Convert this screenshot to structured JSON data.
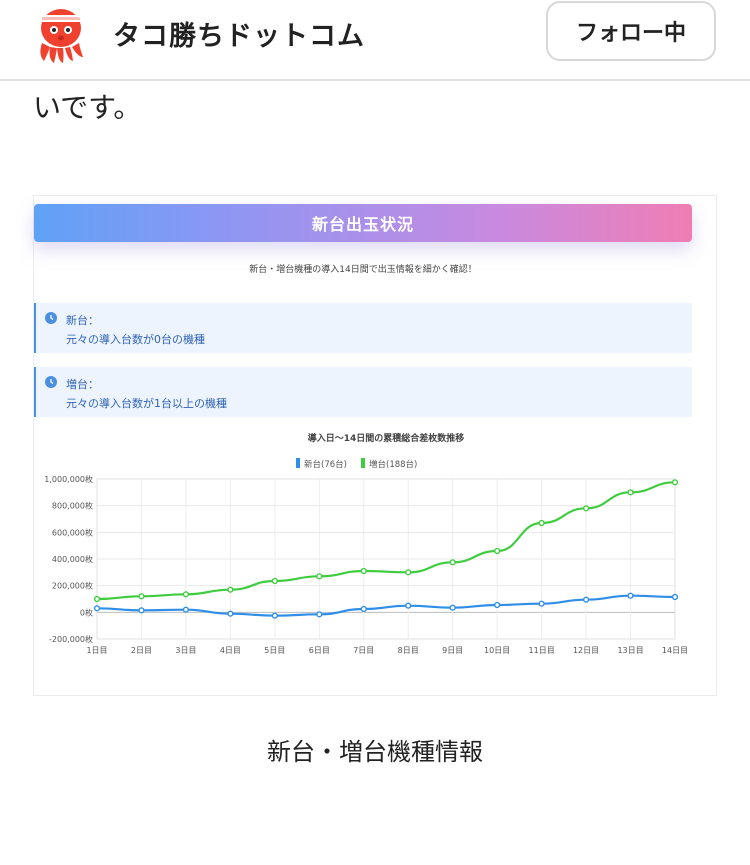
{
  "header": {
    "site_name": "タコ勝ちドットコム",
    "follow_label": "フォロー中",
    "avatar_icon": "octopus-mascot-icon"
  },
  "lead_text": "いです。",
  "card": {
    "banner_title": "新台出玉状況",
    "subtitle": "新台・増台機種の導入14日間で出玉情報を細かく確認！",
    "info": [
      {
        "title": "新台：",
        "desc": "元々の導入台数が0台の機種",
        "icon": "clock-icon"
      },
      {
        "title": "増台：",
        "desc": "元々の導入台数が1台以上の機種",
        "icon": "clock-icon"
      }
    ]
  },
  "chart_data": {
    "type": "line",
    "title": "導入日〜14日間の累積総合差枚数推移",
    "categories": [
      "1日目",
      "2日目",
      "3日目",
      "4日目",
      "5日目",
      "6日目",
      "7日目",
      "8日目",
      "9日目",
      "10日目",
      "11日目",
      "12日目",
      "13日目",
      "14日目"
    ],
    "series": [
      {
        "name": "新台(76台)",
        "color": "#2f8ee8",
        "values": [
          30000,
          15000,
          20000,
          -10000,
          -25000,
          -15000,
          25000,
          50000,
          35000,
          55000,
          65000,
          95000,
          125000,
          115000
        ]
      },
      {
        "name": "増台(188台)",
        "color": "#3fcc3f",
        "values": [
          100000,
          120000,
          135000,
          170000,
          235000,
          270000,
          310000,
          300000,
          375000,
          460000,
          670000,
          780000,
          900000,
          975000
        ]
      }
    ],
    "ylim": [
      -200000,
      1000000
    ],
    "yticks": [
      "-200,000枚",
      "0枚",
      "200,000枚",
      "400,000枚",
      "600,000枚",
      "800,000枚",
      "1,000,000枚"
    ],
    "grid": true,
    "legend": "top-center"
  },
  "caption": "新台・増台機種情報"
}
